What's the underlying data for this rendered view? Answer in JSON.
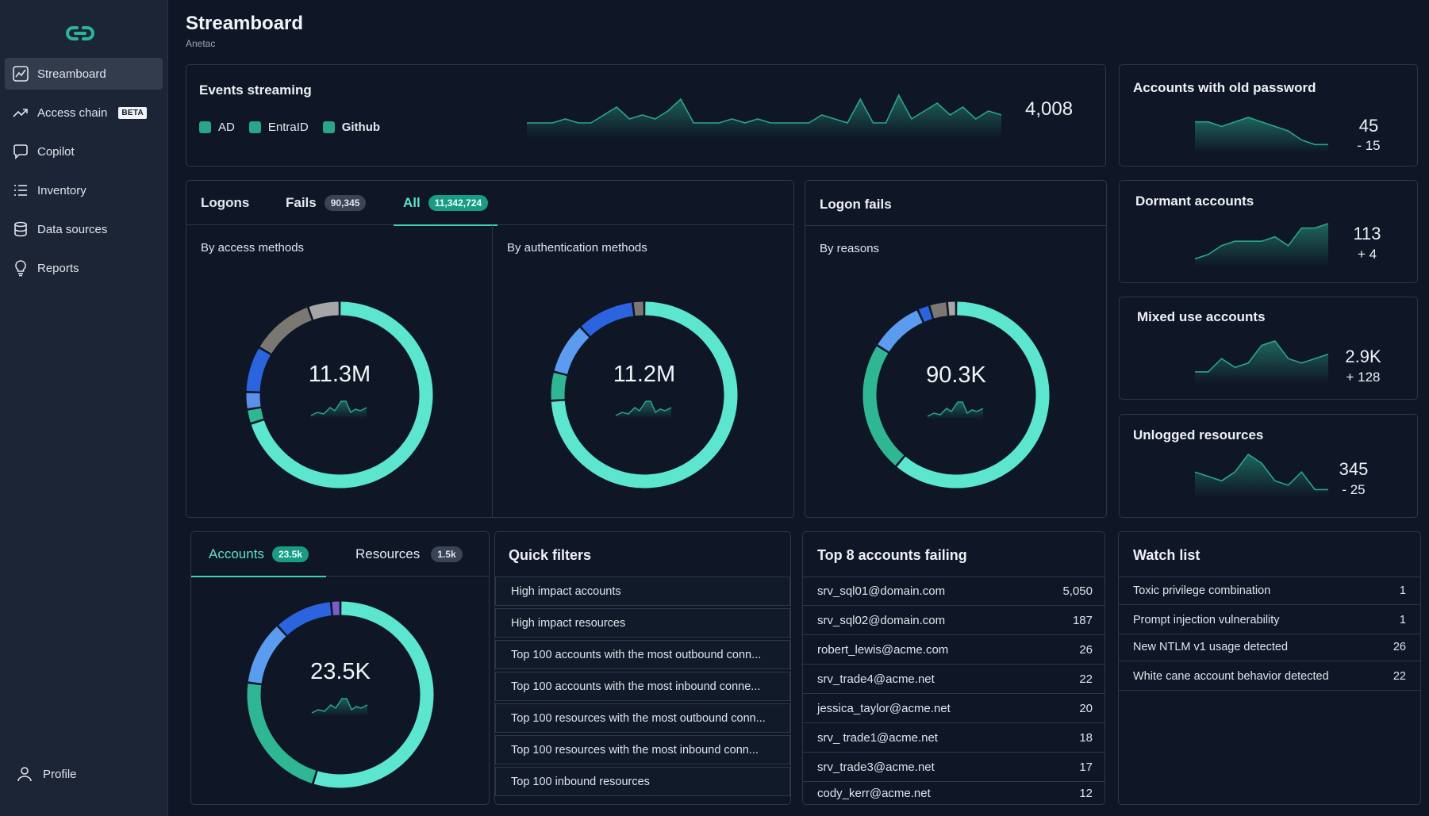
{
  "sidebar": {
    "logo": "link-logo",
    "items": [
      {
        "label": "Streamboard",
        "icon": "chart-line-icon"
      },
      {
        "label": "Access chain",
        "icon": "trend-arrow-icon",
        "badge": "BETA"
      },
      {
        "label": "Copilot",
        "icon": "chat-bubble-icon"
      },
      {
        "label": "Inventory",
        "icon": "list-icon"
      },
      {
        "label": "Data sources",
        "icon": "database-icon"
      },
      {
        "label": "Reports",
        "icon": "lightbulb-icon"
      }
    ],
    "profile": "Profile"
  },
  "header": {
    "title": "Streamboard",
    "subtitle": "Anetac"
  },
  "events": {
    "title": "Events streaming",
    "legend": [
      "AD",
      "EntraID",
      "Github"
    ],
    "value": "4,008",
    "sparkline": [
      3,
      3,
      3,
      4,
      3,
      3,
      5,
      7,
      4,
      5,
      4,
      6,
      9,
      3,
      3,
      3,
      4,
      3,
      4,
      3,
      3,
      3,
      3,
      5,
      4,
      3,
      9,
      3,
      3,
      10,
      4,
      6,
      8,
      5,
      7,
      4,
      6,
      5
    ]
  },
  "metrics": [
    {
      "title": "Accounts with old password",
      "value": "45",
      "delta": "- 15",
      "spark": [
        6,
        6,
        5,
        6,
        7,
        6,
        5,
        4,
        2,
        1,
        1
      ]
    },
    {
      "title": "Dormant accounts",
      "value": "113",
      "delta": "+ 4",
      "spark": [
        1,
        2,
        4,
        5,
        5,
        5,
        6,
        4,
        8,
        8,
        9
      ]
    },
    {
      "title": "Mixed use accounts",
      "value": "2.9K",
      "delta": "+ 128",
      "spark": [
        2,
        2,
        5,
        3,
        4,
        8,
        9,
        5,
        4,
        5,
        6
      ]
    },
    {
      "title": "Unlogged resources",
      "value": "345",
      "delta": "- 25",
      "spark": [
        5,
        4,
        3,
        5,
        9,
        7,
        3,
        2,
        5,
        1,
        1
      ]
    }
  ],
  "logons": {
    "tabs": [
      {
        "label": "Logons"
      },
      {
        "label": "Fails",
        "count": "90,345"
      },
      {
        "label": "All",
        "count": "11,342,724"
      }
    ],
    "by_access": {
      "label": "By access methods",
      "value": "11.3M"
    },
    "by_auth": {
      "label": "By authentication methods",
      "value": "11.2M"
    }
  },
  "logon_fails": {
    "title": "Logon fails",
    "label": "By reasons",
    "value": "90.3K"
  },
  "accounts": {
    "tabs": [
      {
        "label": "Accounts",
        "count": "23.5k"
      },
      {
        "label": "Resources",
        "count": "1.5k"
      }
    ],
    "value": "23.5K"
  },
  "quick_filters": {
    "title": "Quick filters",
    "items": [
      "High impact accounts",
      "High impact resources",
      "Top 100 accounts with the most outbound conn...",
      "Top 100 accounts with the most inbound conne...",
      "Top 100 resources with the most outbound conn...",
      "Top 100 resources with the most inbound conn...",
      "Top 100 inbound resources"
    ]
  },
  "top8": {
    "title": "Top 8 accounts failing",
    "rows": [
      {
        "name": "srv_sql01@domain.com",
        "count": "5,050"
      },
      {
        "name": "srv_sql02@domain.com",
        "count": "187"
      },
      {
        "name": "robert_lewis@acme.com",
        "count": "26"
      },
      {
        "name": "srv_trade4@acme.net",
        "count": "22"
      },
      {
        "name": "jessica_taylor@acme.net",
        "count": "20"
      },
      {
        "name": "srv_ trade1@acme.net",
        "count": "18"
      },
      {
        "name": "srv_trade3@acme.net",
        "count": "17"
      },
      {
        "name": "cody_kerr@acme.net",
        "count": "12"
      }
    ]
  },
  "watch_list": {
    "title": "Watch list",
    "rows": [
      {
        "name": "Toxic privilege combination",
        "count": "1"
      },
      {
        "name": "Prompt injection vulnerability",
        "count": "1"
      },
      {
        "name": "New NTLM v1 usage detected",
        "count": "26"
      },
      {
        "name": "White cane account behavior detected",
        "count": "22"
      }
    ]
  },
  "donut_segments": {
    "access": [
      {
        "v": 70,
        "c": "#5ce6cf"
      },
      {
        "v": 2.5,
        "c": "#2fb794"
      },
      {
        "v": 3,
        "c": "#5b8fe8"
      },
      {
        "v": 8,
        "c": "#2c64df"
      },
      {
        "v": 11,
        "c": "#7b7873"
      },
      {
        "v": 5.5,
        "c": "#a6a6a6"
      }
    ],
    "auth": [
      {
        "v": 74,
        "c": "#5ce6cf"
      },
      {
        "v": 5,
        "c": "#2fb794"
      },
      {
        "v": 9,
        "c": "#5b9cf0"
      },
      {
        "v": 10,
        "c": "#2c64df"
      },
      {
        "v": 2,
        "c": "#7b7873"
      }
    ],
    "fails": [
      {
        "v": 59,
        "c": "#5ce6cf"
      },
      {
        "v": 22,
        "c": "#2fb794"
      },
      {
        "v": 9,
        "c": "#5b9cf0"
      },
      {
        "v": 2,
        "c": "#2c64df"
      },
      {
        "v": 3,
        "c": "#7b7873"
      },
      {
        "v": 1.5,
        "c": "#a6a6a6"
      }
    ],
    "accounts": [
      {
        "v": 54,
        "c": "#5ce6cf"
      },
      {
        "v": 22,
        "c": "#2fb794"
      },
      {
        "v": 11,
        "c": "#5b9cf0"
      },
      {
        "v": 10,
        "c": "#2c64df"
      },
      {
        "v": 1.6,
        "c": "#7a5fc8"
      }
    ]
  },
  "colors": {
    "accent": "#3fd1b5",
    "spark": "#2aa588"
  }
}
